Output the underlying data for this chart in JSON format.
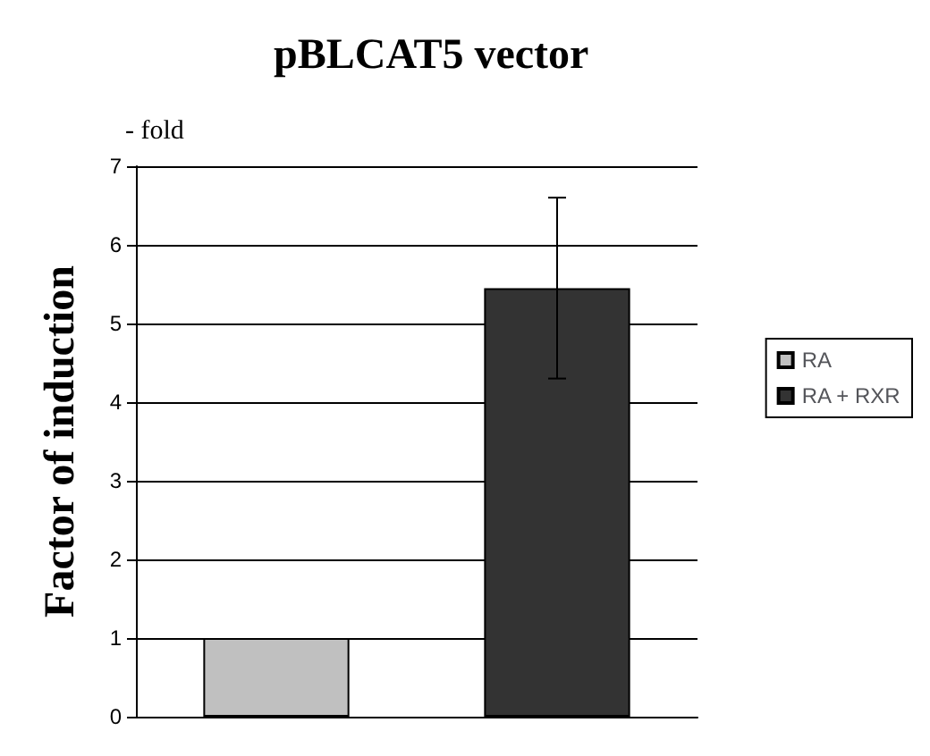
{
  "chart_data": {
    "type": "bar",
    "title": "pBLCAT5 vector",
    "ylabel": "Factor of induction",
    "annotations": [
      "- fold"
    ],
    "categories": [
      null,
      null
    ],
    "series": [
      {
        "name": "RA",
        "color": "#c0c0c0",
        "values": [
          1,
          null
        ]
      },
      {
        "name": "RA + RXR",
        "color": "#333333",
        "values": [
          null,
          5.45
        ],
        "errors": [
          null,
          [
            4.3,
            6.6
          ]
        ]
      }
    ],
    "ylim": [
      0,
      7
    ],
    "yticks": [
      0,
      1,
      2,
      3,
      4,
      5,
      6,
      7
    ],
    "grid": "y",
    "legend": "right"
  }
}
